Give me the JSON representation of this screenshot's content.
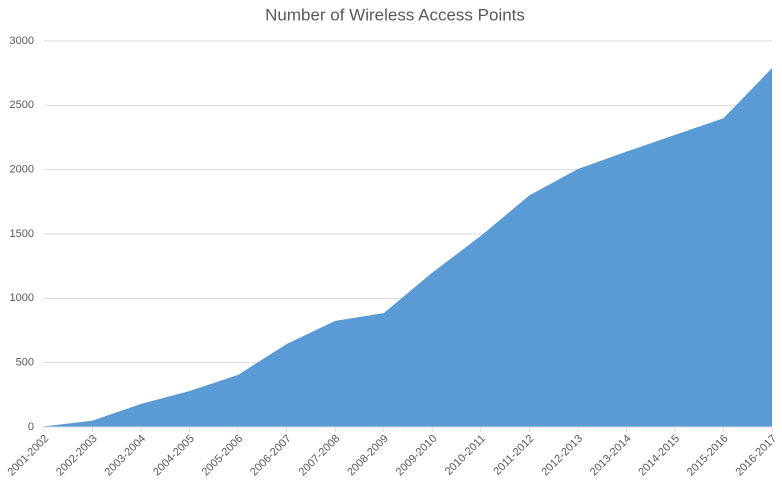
{
  "chart_data": {
    "type": "area",
    "title": "Number of Wireless Access Points",
    "categories": [
      "2001-2002",
      "2002-2003",
      "2003-2004",
      "2004-2005",
      "2005-2006",
      "2006-2007",
      "2007-2008",
      "2008-2009",
      "2009-2010",
      "2010-2011",
      "2011-2012",
      "2012-2013",
      "2013-2014",
      "2014-2015",
      "2015-2016",
      "2016-2017"
    ],
    "values": [
      5,
      50,
      180,
      280,
      405,
      645,
      825,
      885,
      1200,
      1485,
      1800,
      2005,
      2140,
      2270,
      2400,
      2790
    ],
    "color": "#5b9bd5",
    "ylim": [
      0,
      3000
    ],
    "yticks": [
      0,
      500,
      1000,
      1500,
      2000,
      2500,
      3000
    ],
    "grid": true
  }
}
